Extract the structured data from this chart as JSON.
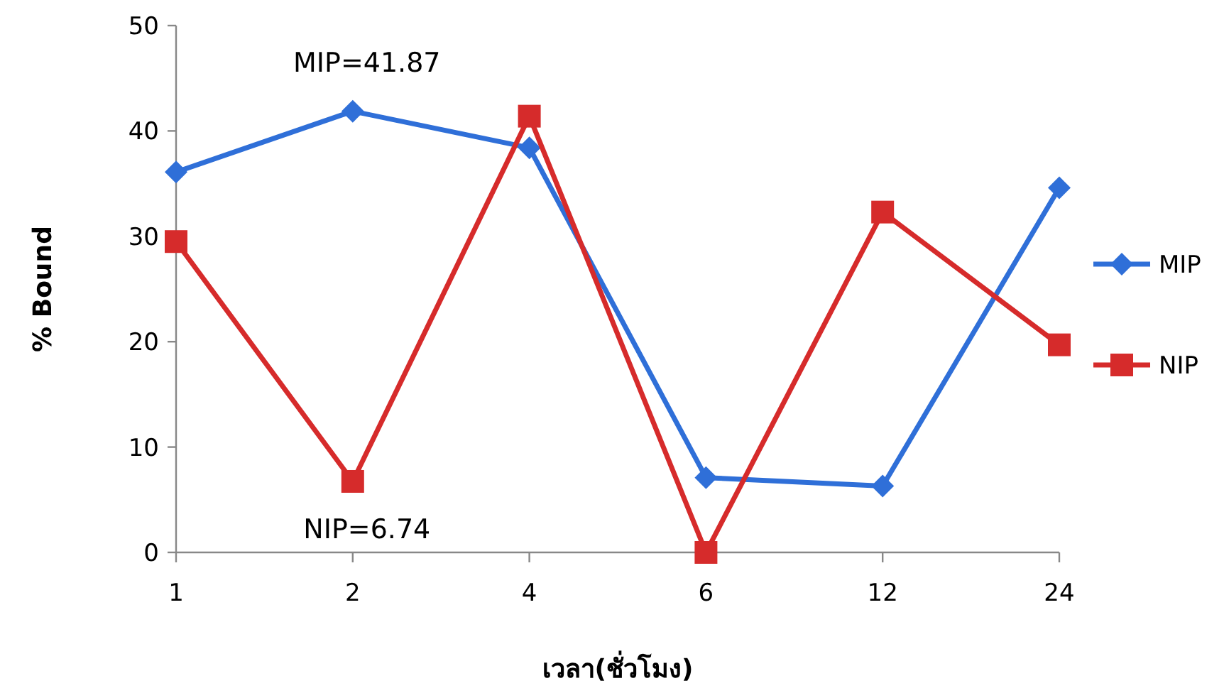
{
  "chart_data": {
    "type": "line",
    "xlabel": "เวลา(ชั่วโมง)",
    "ylabel": "% Bound",
    "categories": [
      "1",
      "2",
      "4",
      "6",
      "12",
      "24"
    ],
    "ylim": [
      0,
      50
    ],
    "yticks": [
      0,
      10,
      20,
      30,
      40,
      50
    ],
    "grid": false,
    "legend": "right",
    "line_style": "solid",
    "series": [
      {
        "name": "MIP",
        "color": "#2f6fd8",
        "marker": "diamond",
        "values": [
          36.1,
          41.87,
          38.4,
          7.1,
          6.3,
          34.6
        ]
      },
      {
        "name": "NIP",
        "color": "#d62b2b",
        "marker": "square",
        "values": [
          29.5,
          6.74,
          41.4,
          0,
          32.3,
          19.7
        ]
      }
    ],
    "annotations": [
      {
        "text": "MIP=41.87",
        "x": "2",
        "y": 41.87
      },
      {
        "text": "NIP=6.74",
        "x": "2",
        "y": 6.74
      }
    ]
  }
}
